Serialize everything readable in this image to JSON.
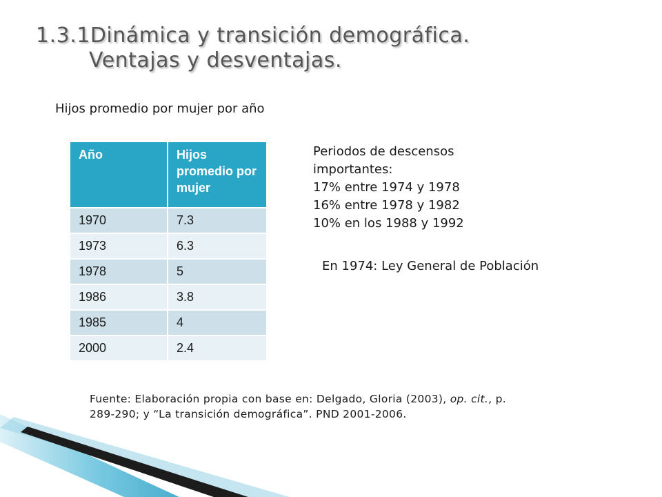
{
  "slide": {
    "title_line1": "1.3.1Dinámica y transición demográfica.",
    "title_line2": "Ventajas y desventajas.",
    "table_caption": "Hijos promedio por mujer por año"
  },
  "table": {
    "headers": [
      "Año",
      "Hijos promedio por mujer"
    ],
    "rows": [
      [
        "1970",
        "7.3"
      ],
      [
        "1973",
        "6.3"
      ],
      [
        "1978",
        "5"
      ],
      [
        "1986",
        "3.8"
      ],
      [
        "1985",
        "4"
      ],
      [
        "2000",
        "2.4"
      ]
    ]
  },
  "periods": {
    "heading": "Periodos de descensos importantes:",
    "items": [
      "17% entre 1974 y 1978",
      "16% entre 1978 y 1982",
      "10% en los 1988 y 1992"
    ]
  },
  "law_note": "En 1974: Ley General de Población",
  "source": {
    "part1": "Fuente: Elaboración propia con base en: Delgado, Gloria (2003), ",
    "italic": "op. cit.",
    "part2": ", p. 289-290; y “La transición demográfica”. PND 2001-2006."
  }
}
